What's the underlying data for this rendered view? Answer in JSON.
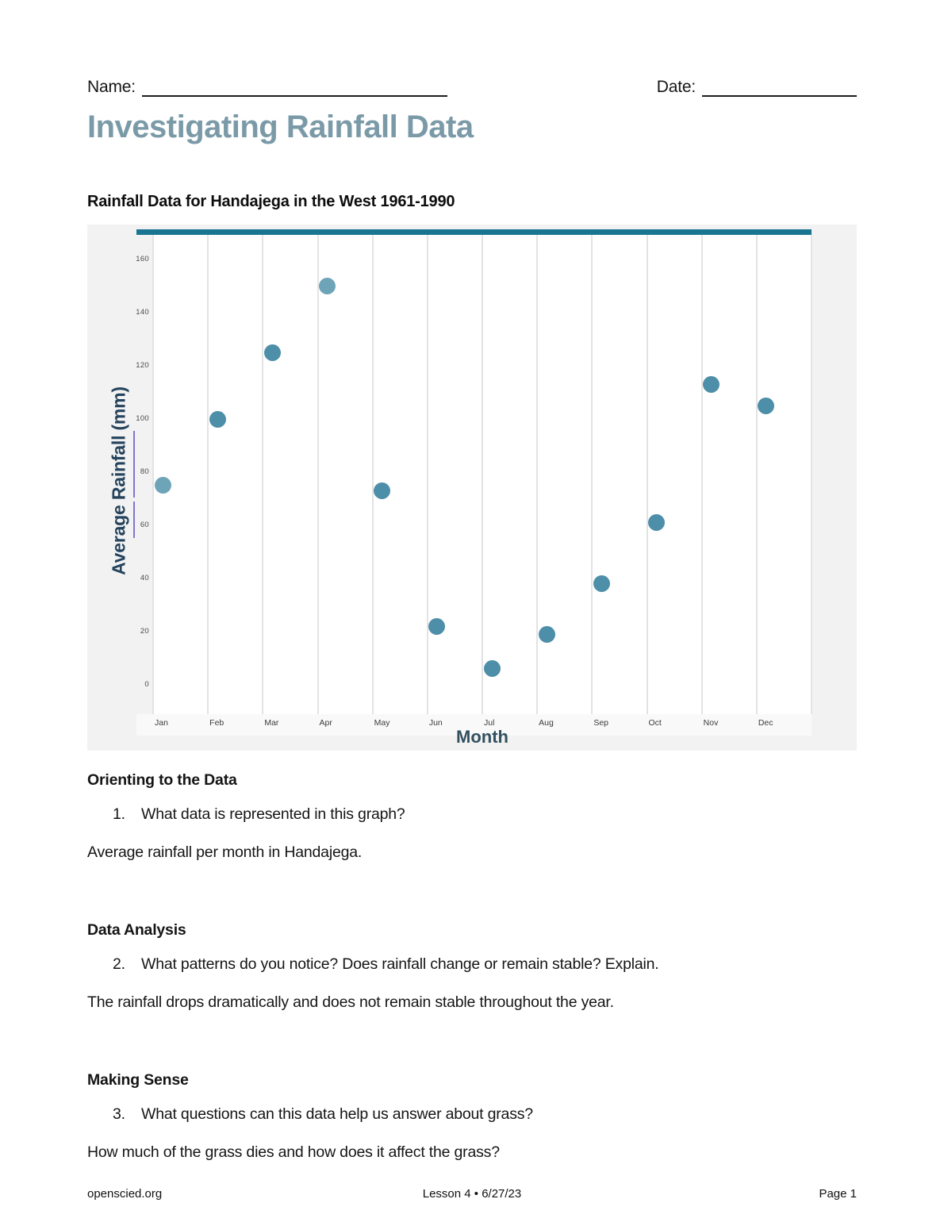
{
  "header": {
    "name_label": "Name:",
    "date_label": "Date:"
  },
  "title": "Investigating Rainfall Data",
  "chart_heading": "Rainfall Data for Handajega in the West 1961-1990",
  "chart_data": {
    "type": "scatter",
    "title": "Rainfall Data for Handajega in the West 1961-1990",
    "xlabel": "Month",
    "ylabel": "Average Rainfall (mm)",
    "categories": [
      "Jan",
      "Feb",
      "Mar",
      "Apr",
      "May",
      "Jun",
      "Jul",
      "Aug",
      "Sep",
      "Oct",
      "Nov",
      "Dec"
    ],
    "values": [
      75,
      100,
      125,
      150,
      73,
      22,
      6,
      19,
      38,
      61,
      113,
      105
    ],
    "ylim": [
      0,
      170
    ],
    "yticks": [
      0,
      20,
      40,
      60,
      80,
      100,
      120,
      140,
      160
    ],
    "grid": "vertical-only",
    "legend": "none",
    "point_color": "#4d8ea9",
    "light_point_color": "#6da4b8",
    "light_point_months": [
      "Jan",
      "Apr"
    ],
    "accent_bar_color": "#1a7690"
  },
  "sections": [
    {
      "heading": "Orienting to the Data",
      "number": "1.",
      "question": "What data is represented in this graph?",
      "answer": "Average rainfall per month in Handajega."
    },
    {
      "heading": "Data Analysis",
      "number": "2.",
      "question": "What patterns do you notice?  Does rainfall change or remain stable?  Explain.",
      "answer": "The rainfall drops dramatically and does not remain stable throughout the year."
    },
    {
      "heading": "Making Sense",
      "number": "3.",
      "question": "What questions can this data help us answer about grass?",
      "answer": "How much of the grass dies and how does it affect the grass?"
    }
  ],
  "footer": {
    "left": "openscied.org",
    "center": "Lesson 4 • 6/27/23",
    "right": "Page 1"
  }
}
